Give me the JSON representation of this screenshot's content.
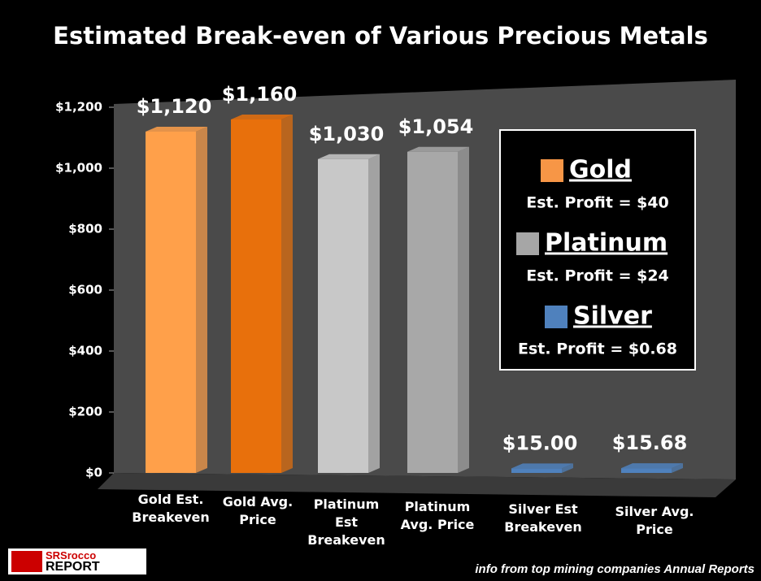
{
  "chart_data": {
    "type": "bar3d",
    "title": "Estimated Break-even of Various Precious Metals",
    "categories": [
      "Gold Est. Breakeven",
      "Gold Avg. Price",
      "Platinum Est Breakeven",
      "Platinum Avg. Price",
      "Silver Est Breakeven",
      "Silver Avg. Price"
    ],
    "values": [
      1120,
      1160,
      1030,
      1054,
      15,
      15.68
    ],
    "value_labels": [
      "$1,120",
      "$1,160",
      "$1,030",
      "$1,054",
      "$15.00",
      "$15.68"
    ],
    "colors": [
      "#ffa04a",
      "#e8700c",
      "#c8c8c8",
      "#a8a8a8",
      "#4f81bd",
      "#4f81bd"
    ],
    "ylim": [
      0,
      1200
    ],
    "yticks": [
      {
        "value": 0,
        "label": "$0"
      },
      {
        "value": 200,
        "label": "$200"
      },
      {
        "value": 400,
        "label": "$400"
      },
      {
        "value": 600,
        "label": "$600"
      },
      {
        "value": 800,
        "label": "$800"
      },
      {
        "value": 1000,
        "label": "$1,000"
      },
      {
        "value": 1200,
        "label": "$1,200"
      }
    ],
    "legend_entries": [
      {
        "name": "Gold",
        "color": "#f79646",
        "note": "Est. Profit = $40"
      },
      {
        "name": "Platinum",
        "color": "#a6a6a6",
        "note": "Est. Profit = $24"
      },
      {
        "name": "Silver",
        "color": "#4f81bd",
        "note": "Est. Profit = $0.68"
      }
    ],
    "source": "info from top mining companies Annual Reports",
    "logo": [
      "SRSrocco",
      "REPORT"
    ]
  }
}
